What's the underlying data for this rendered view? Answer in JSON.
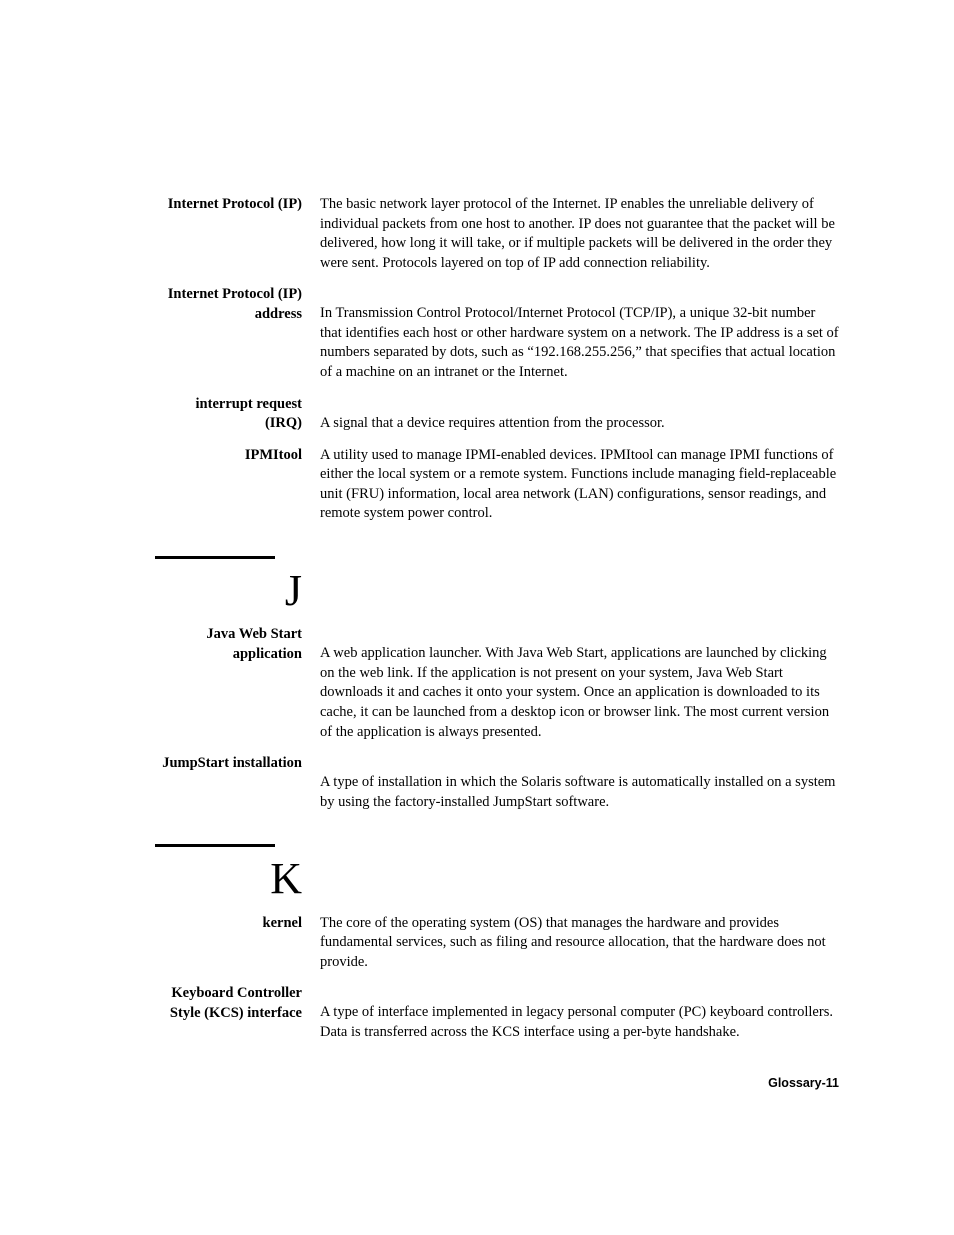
{
  "entries_top": [
    {
      "term": "Internet Protocol (IP)",
      "definition": "The basic network layer protocol of the Internet. IP enables the unreliable delivery of individual packets from one host to another. IP does not guarantee that the packet will be delivered, how long it will take, or if multiple packets will be delivered in the order they were sent. Protocols layered on top of IP add connection reliability.",
      "two_line": false
    },
    {
      "term": "Internet Protocol (IP) address",
      "definition": "In Transmission Control Protocol/Internet Protocol (TCP/IP), a unique 32-bit number that identifies each host or other hardware system on a network. The IP address is a set of numbers separated by dots, such as “192.168.255.256,” that specifies that actual location of a machine on an intranet or the Internet.",
      "two_line": true
    },
    {
      "term": "interrupt request (IRQ)",
      "definition": "A signal that a device requires attention from the processor.",
      "two_line": true
    },
    {
      "term": "IPMItool",
      "definition": "A utility used to manage IPMI-enabled devices. IPMItool can manage IPMI functions of either the local system or a remote system. Functions include managing field-replaceable unit (FRU) information, local area network (LAN) configurations, sensor readings, and remote system power control.",
      "two_line": false
    }
  ],
  "section_j": {
    "letter": "J",
    "entries": [
      {
        "term": "Java Web Start application",
        "definition": "A web application launcher. With Java Web Start, applications are launched by clicking on the web link. If the application is not present on your system, Java Web Start downloads it and caches it onto your system. Once an application is downloaded to its cache, it can be launched from a desktop icon or browser link. The most current version of the application is always presented.",
        "two_line": true
      },
      {
        "term": "JumpStart installation",
        "definition": "A type of installation in which the Solaris software is automatically installed on a system by using the factory-installed JumpStart software.",
        "two_line": true
      }
    ]
  },
  "section_k": {
    "letter": "K",
    "entries": [
      {
        "term": "kernel",
        "definition": "The core of the operating system (OS) that manages the hardware and provides fundamental services, such as filing and resource allocation, that the hardware does not provide.",
        "two_line": false
      },
      {
        "term": "Keyboard Controller Style (KCS) interface",
        "definition": "A type of interface implemented in legacy personal computer (PC) keyboard controllers. Data is transferred across the KCS interface using a per-byte handshake.",
        "two_line": true
      }
    ]
  },
  "footer": "Glossary-11",
  "colors": {
    "text": "#000000",
    "background": "#ffffff",
    "rule": "#000000"
  },
  "typography": {
    "body_fontsize": 14.5,
    "letter_fontsize": 44,
    "footer_fontsize": 12.5
  }
}
